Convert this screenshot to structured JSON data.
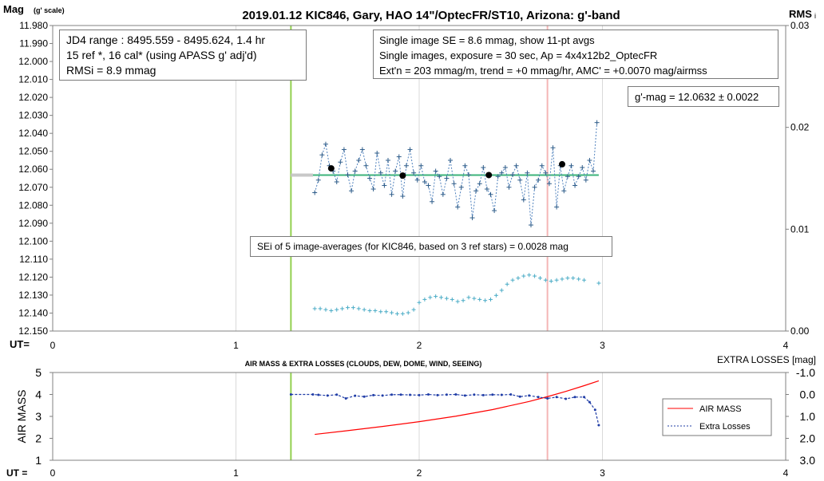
{
  "chart_data": [
    {
      "type": "scatter",
      "title": "2019.01.12 KIC846, Gary, HAO 14\"/OptecFR/ST10, Arizona: g'-band",
      "ylabel_left": "Mag",
      "ylabel_left_sub": "(g' scale)",
      "ylabel_right": "RMS",
      "ylabel_right_sub": "i",
      "xlabel": "UT=",
      "xlim": [
        0,
        4
      ],
      "x_ticks": [
        "0",
        "1",
        "2",
        "3",
        "4"
      ],
      "ylim": [
        12.15,
        11.98
      ],
      "y_ticks": [
        "11.980",
        "11.990",
        "12.000",
        "12.010",
        "12.020",
        "12.030",
        "12.040",
        "12.050",
        "12.060",
        "12.070",
        "12.080",
        "12.090",
        "12.100",
        "12.110",
        "12.120",
        "12.130",
        "12.140",
        "12.150"
      ],
      "y2lim": [
        0.0,
        0.03
      ],
      "y2_ticks": [
        "0.00",
        "0.01",
        "0.02",
        "0.03"
      ],
      "annotations": {
        "box1": [
          "JD4 range : 8495.559 - 8495.624,  1.4  hr",
          "15 ref *, 16 cal* (using APASS g' adj'd)",
          "RMSi = 8.9 mmag"
        ],
        "box2": [
          "Single image SE = 8.6 mmag, show  11-pt avgs",
          "Single images, exposure = 30 sec, Ap = 4x4x12b2_OptecFR",
          "Ext'n = 203 mmag/m, trend =  +0 mmag/hr, AMC' = +0.0070 mag/airmss"
        ],
        "gmag": "g'-mag = 12.0632 ± 0.0022",
        "sei": "SEi of 5 image-averages (for KIC846, based on 3 ref stars) = 0.0028 mag"
      },
      "vertical_lines": [
        {
          "x": 1.3,
          "color": "#92d050"
        },
        {
          "x": 2.7,
          "color": "#f4b6b6"
        }
      ],
      "mean_line": {
        "x": [
          1.42,
          2.98
        ],
        "y": 12.0632,
        "color": "#3cb37a"
      },
      "gray_segment": {
        "x": [
          1.3,
          1.42
        ],
        "y": 12.0632
      },
      "series": [
        {
          "name": "single images",
          "color": "#4f81bd",
          "x": [
            1.43,
            1.45,
            1.47,
            1.49,
            1.51,
            1.53,
            1.55,
            1.57,
            1.59,
            1.61,
            1.63,
            1.65,
            1.67,
            1.69,
            1.71,
            1.73,
            1.75,
            1.77,
            1.79,
            1.81,
            1.83,
            1.85,
            1.87,
            1.89,
            1.91,
            1.93,
            1.95,
            1.97,
            1.99,
            2.01,
            2.03,
            2.05,
            2.07,
            2.09,
            2.11,
            2.13,
            2.15,
            2.17,
            2.19,
            2.21,
            2.23,
            2.25,
            2.27,
            2.29,
            2.31,
            2.33,
            2.35,
            2.37,
            2.39,
            2.41,
            2.43,
            2.45,
            2.47,
            2.49,
            2.51,
            2.53,
            2.55,
            2.57,
            2.59,
            2.61,
            2.63,
            2.65,
            2.67,
            2.69,
            2.71,
            2.73,
            2.75,
            2.77,
            2.79,
            2.81,
            2.83,
            2.85,
            2.87,
            2.89,
            2.91,
            2.93,
            2.95,
            2.97
          ],
          "y": [
            12.073,
            12.066,
            12.052,
            12.046,
            12.058,
            12.061,
            12.067,
            12.056,
            12.049,
            12.063,
            12.072,
            12.061,
            12.055,
            12.049,
            12.058,
            12.065,
            12.071,
            12.051,
            12.062,
            12.069,
            12.055,
            12.074,
            12.061,
            12.053,
            12.075,
            12.058,
            12.049,
            12.062,
            12.066,
            12.058,
            12.067,
            12.069,
            12.078,
            12.061,
            12.064,
            12.074,
            12.065,
            12.055,
            12.068,
            12.081,
            12.07,
            12.058,
            12.063,
            12.087,
            12.072,
            12.068,
            12.059,
            12.071,
            12.074,
            12.083,
            12.064,
            12.062,
            12.059,
            12.07,
            12.063,
            12.058,
            12.066,
            12.077,
            12.062,
            12.091,
            12.07,
            12.066,
            12.058,
            12.062,
            12.068,
            12.048,
            12.081,
            12.058,
            12.072,
            12.064,
            12.058,
            12.069,
            12.064,
            12.059,
            12.066,
            12.055,
            12.061,
            12.034
          ]
        },
        {
          "name": "11-pt averages",
          "color": "#000000",
          "x": [
            1.52,
            1.91,
            2.38,
            2.78
          ],
          "y": [
            12.0595,
            12.0635,
            12.0632,
            12.0572
          ]
        },
        {
          "name": "RMSi",
          "axis": "right",
          "color": "#4bacc6",
          "x": [
            1.43,
            1.46,
            1.49,
            1.52,
            1.55,
            1.58,
            1.61,
            1.64,
            1.67,
            1.7,
            1.73,
            1.76,
            1.79,
            1.82,
            1.85,
            1.88,
            1.91,
            1.94,
            1.97,
            2.0,
            2.03,
            2.06,
            2.09,
            2.12,
            2.15,
            2.18,
            2.21,
            2.24,
            2.27,
            2.3,
            2.33,
            2.36,
            2.39,
            2.42,
            2.45,
            2.48,
            2.51,
            2.54,
            2.57,
            2.6,
            2.63,
            2.66,
            2.69,
            2.72,
            2.75,
            2.78,
            2.81,
            2.84,
            2.87,
            2.9,
            2.98
          ],
          "y": [
            0.0022,
            0.0022,
            0.0021,
            0.002,
            0.0021,
            0.0022,
            0.0023,
            0.0023,
            0.0022,
            0.0021,
            0.002,
            0.002,
            0.0019,
            0.0019,
            0.0018,
            0.0017,
            0.0017,
            0.0018,
            0.0021,
            0.0028,
            0.0031,
            0.0033,
            0.0034,
            0.0033,
            0.0032,
            0.0031,
            0.0029,
            0.003,
            0.0033,
            0.0032,
            0.0031,
            0.003,
            0.0031,
            0.0035,
            0.004,
            0.0046,
            0.005,
            0.0052,
            0.0054,
            0.0055,
            0.0054,
            0.0052,
            0.005,
            0.0049,
            0.005,
            0.0051,
            0.0052,
            0.0052,
            0.0051,
            0.005,
            0.0047
          ]
        }
      ]
    },
    {
      "type": "line",
      "title": "AIR MASS & EXTRA LOSSES (CLOUDS, DEW, DOME, WIND, SEEING)",
      "ylabel_left": "AIR MASS",
      "ylabel_right": "EXTRA LOSSES [mag]",
      "xlabel": "UT =",
      "xlim": [
        0,
        4
      ],
      "x_ticks": [
        "0",
        "1",
        "2",
        "3",
        "4"
      ],
      "ylim": [
        1,
        5
      ],
      "y_ticks": [
        "1",
        "2",
        "3",
        "4",
        "5"
      ],
      "y2lim": [
        3.0,
        -1.0
      ],
      "y2_ticks": [
        "-1.0",
        "0.0",
        "1.0",
        "2.0",
        "3.0"
      ],
      "vertical_lines": [
        {
          "x": 1.3,
          "color": "#92d050"
        },
        {
          "x": 2.7,
          "color": "#f4b6b6"
        }
      ],
      "legend": {
        "placement": "right",
        "items": [
          "AIR MASS",
          "Extra Losses"
        ]
      },
      "series": [
        {
          "name": "AIR MASS",
          "axis": "left",
          "color": "#ff0000",
          "x": [
            1.43,
            1.6,
            1.8,
            2.0,
            2.2,
            2.4,
            2.6,
            2.7,
            2.8,
            2.9,
            2.98
          ],
          "y": [
            2.18,
            2.34,
            2.54,
            2.76,
            3.01,
            3.31,
            3.68,
            3.9,
            4.14,
            4.4,
            4.62
          ]
        },
        {
          "name": "Extra Losses",
          "axis": "right",
          "color": "#1f3ca6",
          "x": [
            1.3,
            1.42,
            1.45,
            1.5,
            1.55,
            1.6,
            1.65,
            1.7,
            1.75,
            1.8,
            1.85,
            1.9,
            1.95,
            2.0,
            2.05,
            2.1,
            2.15,
            2.2,
            2.25,
            2.3,
            2.35,
            2.4,
            2.45,
            2.5,
            2.55,
            2.6,
            2.65,
            2.7,
            2.75,
            2.8,
            2.85,
            2.9,
            2.93,
            2.96,
            2.98
          ],
          "y": [
            0.0,
            0.0,
            0.02,
            0.05,
            0.01,
            0.18,
            0.06,
            0.1,
            0.03,
            0.05,
            0.01,
            0.01,
            0.02,
            0.03,
            0.0,
            0.03,
            0.01,
            0.0,
            0.05,
            0.01,
            0.03,
            0.01,
            0.02,
            0.0,
            0.1,
            0.05,
            0.12,
            0.18,
            0.12,
            0.2,
            0.12,
            0.12,
            0.35,
            0.7,
            1.4
          ]
        }
      ]
    }
  ]
}
